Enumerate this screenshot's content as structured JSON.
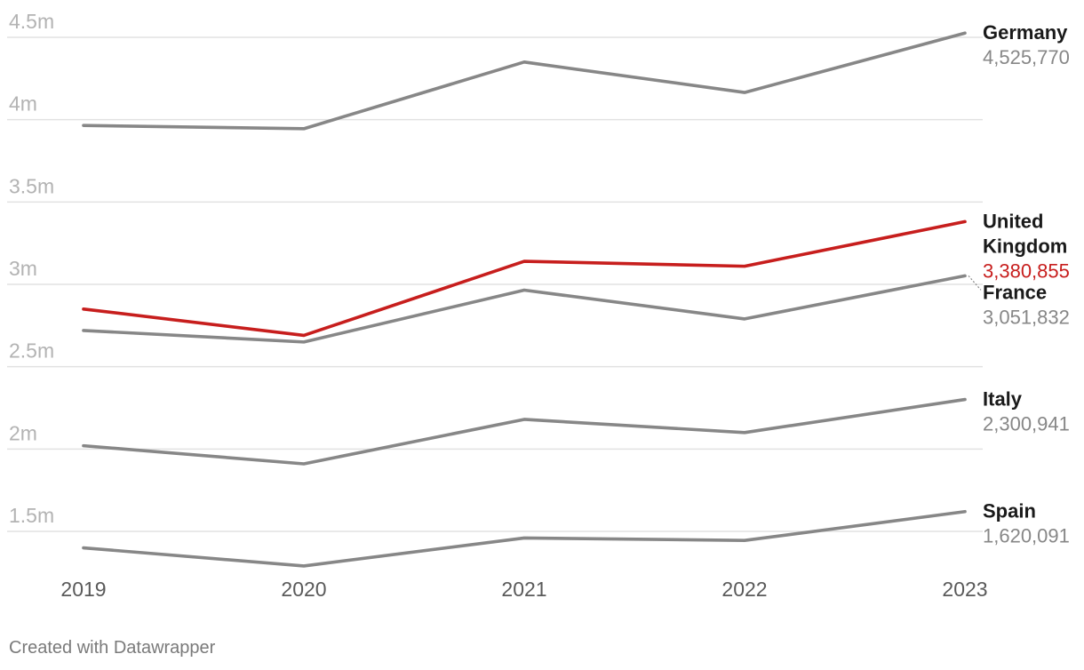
{
  "chart_data": {
    "type": "line",
    "x": [
      "2019",
      "2020",
      "2021",
      "2022",
      "2023"
    ],
    "ylim": [
      1250000,
      4500000
    ],
    "y_ticks": [
      {
        "value": 4500000,
        "label": "4.5m"
      },
      {
        "value": 4000000,
        "label": "4m"
      },
      {
        "value": 3500000,
        "label": "3.5m"
      },
      {
        "value": 3000000,
        "label": "3m"
      },
      {
        "value": 2500000,
        "label": "2.5m"
      },
      {
        "value": 2000000,
        "label": "2m"
      },
      {
        "value": 1500000,
        "label": "1.5m"
      }
    ],
    "grid": true,
    "series": [
      {
        "name": "Germany",
        "end_label": "4,525,770",
        "color": "#878787",
        "values": [
          3965000,
          3945000,
          4350000,
          4165000,
          4525770
        ]
      },
      {
        "name": "United Kingdom",
        "end_label": "3,380,855",
        "color": "#c71e1d",
        "values": [
          2850000,
          2690000,
          3140000,
          3110000,
          3380855
        ]
      },
      {
        "name": "France",
        "end_label": "3,051,832",
        "color": "#878787",
        "values": [
          2720000,
          2650000,
          2965000,
          2790000,
          3051832
        ]
      },
      {
        "name": "Italy",
        "end_label": "2,300,941",
        "color": "#878787",
        "values": [
          2020000,
          1910000,
          2180000,
          2100000,
          2300941
        ]
      },
      {
        "name": "Spain",
        "end_label": "1,620,091",
        "color": "#878787",
        "values": [
          1400000,
          1290000,
          1460000,
          1445000,
          1620091
        ]
      }
    ]
  },
  "credit": "Created with Datawrapper"
}
